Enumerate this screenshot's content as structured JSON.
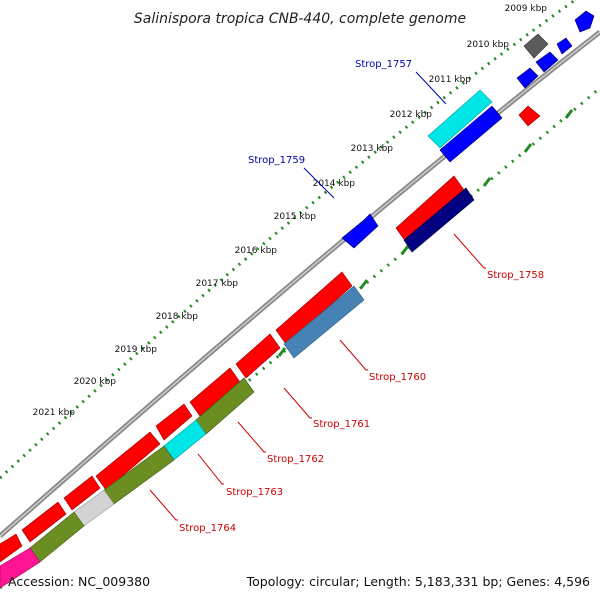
{
  "title": "Salinispora tropica CNB-440, complete genome",
  "accession": "Accession: NC_009380",
  "summary": "Topology: circular; Length: 5,183,331 bp; Genes: 4,596",
  "scale_labels": [
    "2009 kbp",
    "2010 kbp",
    "2011 kbp",
    "2012 kbp",
    "2013 kbp",
    "2014 kbp",
    "2015 kbp",
    "2016 kbp",
    "2017 kbp",
    "2018 kbp",
    "2019 kbp",
    "2020 kbp",
    "2021 kbp"
  ],
  "gene_labels": [
    {
      "text": "Strop_1757",
      "color": "#0000aa"
    },
    {
      "text": "Strop_1759",
      "color": "#0000aa"
    },
    {
      "text": "Strop_1758",
      "color": "#cc0000"
    },
    {
      "text": "Strop_1760",
      "color": "#cc0000"
    },
    {
      "text": "Strop_1761",
      "color": "#cc0000"
    },
    {
      "text": "Strop_1762",
      "color": "#cc0000"
    },
    {
      "text": "Strop_1763",
      "color": "#cc0000"
    },
    {
      "text": "Strop_1764",
      "color": "#cc0000"
    }
  ],
  "colors": {
    "backbone": "#8c8c8c",
    "tick": "#228b22",
    "forward": "#ff0000",
    "reverse_red": "#ff0000",
    "blue": "#0000ff",
    "cyan": "#00e5e5",
    "navy": "#000080",
    "steelblue": "#4682b4",
    "olive": "#6b8e23",
    "grey": "#696969",
    "lightgrey": "#d3d3d3",
    "pink": "#ff1493"
  }
}
